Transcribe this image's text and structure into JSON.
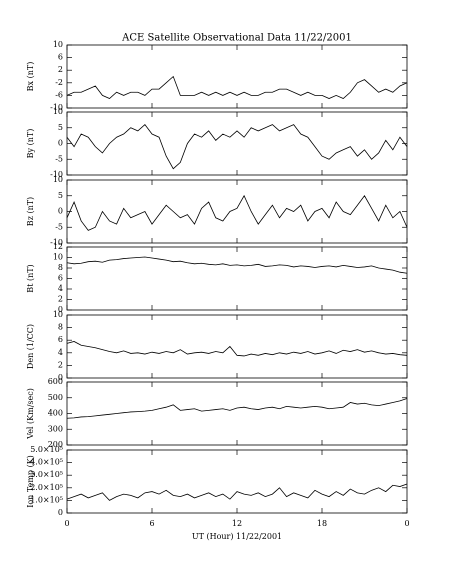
{
  "chart_data": [
    {
      "type": "line",
      "title": "ACE Satellite Observational Data   11/22/2001",
      "ylabel": "Bx (nT)",
      "color": "#000000",
      "ylim": [
        -10,
        10
      ],
      "yticks": [
        -10,
        -6,
        -2,
        2,
        6,
        10
      ],
      "x": [
        0,
        0.5,
        1,
        1.5,
        2,
        2.5,
        3,
        3.5,
        4,
        4.5,
        5,
        5.5,
        6,
        6.5,
        7,
        7.5,
        8,
        8.5,
        9,
        9.5,
        10,
        10.5,
        11,
        11.5,
        12,
        12.5,
        13,
        13.5,
        14,
        14.5,
        15,
        15.5,
        16,
        16.5,
        17,
        17.5,
        18,
        18.5,
        19,
        19.5,
        20,
        20.5,
        21,
        21.5,
        22,
        22.5,
        23,
        23.5,
        24
      ],
      "values": [
        -6,
        -5,
        -5,
        -4,
        -3,
        -6,
        -7,
        -5,
        -6,
        -5,
        -5,
        -6,
        -4,
        -4,
        -2,
        0,
        -6,
        -6,
        -6,
        -5,
        -6,
        -5,
        -6,
        -5,
        -6,
        -5,
        -6,
        -6,
        -5,
        -5,
        -4,
        -4,
        -5,
        -6,
        -5,
        -6,
        -6,
        -7,
        -6,
        -7,
        -5,
        -2,
        -1,
        -3,
        -5,
        -4,
        -5,
        -3,
        -2
      ]
    },
    {
      "type": "line",
      "ylabel": "By (nT)",
      "color": "#000000",
      "ylim": [
        -10,
        10
      ],
      "yticks": [
        -10,
        -5,
        0,
        5,
        10
      ],
      "x": [
        0,
        0.5,
        1,
        1.5,
        2,
        2.5,
        3,
        3.5,
        4,
        4.5,
        5,
        5.5,
        6,
        6.5,
        7,
        7.5,
        8,
        8.5,
        9,
        9.5,
        10,
        10.5,
        11,
        11.5,
        12,
        12.5,
        13,
        13.5,
        14,
        14.5,
        15,
        15.5,
        16,
        16.5,
        17,
        17.5,
        18,
        18.5,
        19,
        19.5,
        20,
        20.5,
        21,
        21.5,
        22,
        22.5,
        23,
        23.5,
        24
      ],
      "values": [
        2,
        -1,
        3,
        2,
        -1,
        -3,
        0,
        2,
        3,
        5,
        4,
        6,
        3,
        2,
        -4,
        -8,
        -6,
        0,
        3,
        2,
        4,
        1,
        3,
        2,
        4,
        2,
        5,
        4,
        5,
        6,
        4,
        5,
        6,
        3,
        2,
        -1,
        -4,
        -5,
        -3,
        -2,
        -1,
        -4,
        -2,
        -5,
        -3,
        1,
        -2,
        2,
        -1
      ]
    },
    {
      "type": "line",
      "ylabel": "Bz (nT)",
      "color": "#000000",
      "ylim": [
        -10,
        10
      ],
      "yticks": [
        -10,
        -5,
        0,
        5,
        10
      ],
      "x": [
        0,
        0.5,
        1,
        1.5,
        2,
        2.5,
        3,
        3.5,
        4,
        4.5,
        5,
        5.5,
        6,
        6.5,
        7,
        7.5,
        8,
        8.5,
        9,
        9.5,
        10,
        10.5,
        11,
        11.5,
        12,
        12.5,
        13,
        13.5,
        14,
        14.5,
        15,
        15.5,
        16,
        16.5,
        17,
        17.5,
        18,
        18.5,
        19,
        19.5,
        20,
        20.5,
        21,
        21.5,
        22,
        22.5,
        23,
        23.5,
        24
      ],
      "values": [
        -2,
        3,
        -3,
        -6,
        -5,
        0,
        -3,
        -4,
        1,
        -2,
        -1,
        0,
        -4,
        -1,
        2,
        0,
        -2,
        -1,
        -4,
        1,
        3,
        -2,
        -3,
        0,
        1,
        5,
        0,
        -4,
        -1,
        2,
        -2,
        1,
        0,
        2,
        -3,
        0,
        1,
        -2,
        3,
        0,
        -1,
        2,
        5,
        1,
        -3,
        2,
        -2,
        0,
        -5
      ]
    },
    {
      "type": "line",
      "ylabel": "Bt (nT)",
      "color": "#000000",
      "ylim": [
        0,
        12
      ],
      "yticks": [
        0,
        2,
        4,
        6,
        8,
        10,
        12
      ],
      "x": [
        0,
        0.5,
        1,
        1.5,
        2,
        2.5,
        3,
        3.5,
        4,
        4.5,
        5,
        5.5,
        6,
        6.5,
        7,
        7.5,
        8,
        8.5,
        9,
        9.5,
        10,
        10.5,
        11,
        11.5,
        12,
        12.5,
        13,
        13.5,
        14,
        14.5,
        15,
        15.5,
        16,
        16.5,
        17,
        17.5,
        18,
        18.5,
        19,
        19.5,
        20,
        20.5,
        21,
        21.5,
        22,
        22.5,
        23,
        23.5,
        24
      ],
      "values": [
        9,
        8.8,
        8.9,
        9.2,
        9.3,
        9.1,
        9.5,
        9.6,
        9.8,
        9.9,
        10,
        10.1,
        9.9,
        9.7,
        9.5,
        9.2,
        9.3,
        9,
        8.8,
        8.9,
        8.7,
        8.6,
        8.8,
        8.5,
        8.6,
        8.4,
        8.5,
        8.7,
        8.3,
        8.4,
        8.6,
        8.5,
        8.2,
        8.4,
        8.3,
        8.1,
        8.3,
        8.4,
        8.2,
        8.5,
        8.3,
        8.1,
        8.2,
        8.4,
        8,
        7.8,
        7.6,
        7.2,
        7
      ]
    },
    {
      "type": "line",
      "ylabel": "Den (1/CC)",
      "color": "#000000",
      "ylim": [
        0,
        10
      ],
      "yticks": [
        0,
        2,
        4,
        6,
        8,
        10
      ],
      "x": [
        0,
        0.5,
        1,
        1.5,
        2,
        2.5,
        3,
        3.5,
        4,
        4.5,
        5,
        5.5,
        6,
        6.5,
        7,
        7.5,
        8,
        8.5,
        9,
        9.5,
        10,
        10.5,
        11,
        11.5,
        12,
        12.5,
        13,
        13.5,
        14,
        14.5,
        15,
        15.5,
        16,
        16.5,
        17,
        17.5,
        18,
        18.5,
        19,
        19.5,
        20,
        20.5,
        21,
        21.5,
        22,
        22.5,
        23,
        23.5,
        24
      ],
      "values": [
        5.5,
        5.8,
        5.2,
        5,
        4.8,
        4.5,
        4.2,
        4,
        4.3,
        3.9,
        4,
        3.8,
        4.1,
        3.9,
        4.2,
        4,
        4.5,
        3.8,
        4,
        4.1,
        3.9,
        4.2,
        4,
        5,
        3.6,
        3.5,
        3.8,
        3.6,
        3.9,
        3.7,
        4,
        3.8,
        4.1,
        3.9,
        4.2,
        3.8,
        4,
        4.3,
        3.9,
        4.4,
        4.2,
        4.5,
        4.1,
        4.3,
        4,
        3.8,
        3.9,
        3.7,
        3.6
      ]
    },
    {
      "type": "line",
      "ylabel": "Vel (Km/sec)",
      "color": "#000000",
      "ylim": [
        200,
        600
      ],
      "yticks": [
        200,
        300,
        400,
        500,
        600
      ],
      "x": [
        0,
        0.5,
        1,
        1.5,
        2,
        2.5,
        3,
        3.5,
        4,
        4.5,
        5,
        5.5,
        6,
        6.5,
        7,
        7.5,
        8,
        8.5,
        9,
        9.5,
        10,
        10.5,
        11,
        11.5,
        12,
        12.5,
        13,
        13.5,
        14,
        14.5,
        15,
        15.5,
        16,
        16.5,
        17,
        17.5,
        18,
        18.5,
        19,
        19.5,
        20,
        20.5,
        21,
        21.5,
        22,
        22.5,
        23,
        23.5,
        24
      ],
      "values": [
        370,
        372,
        378,
        380,
        385,
        390,
        395,
        400,
        405,
        410,
        412,
        415,
        420,
        430,
        440,
        455,
        420,
        425,
        430,
        415,
        420,
        425,
        430,
        420,
        435,
        440,
        430,
        425,
        435,
        440,
        430,
        445,
        440,
        435,
        440,
        445,
        440,
        430,
        435,
        440,
        470,
        460,
        465,
        455,
        450,
        460,
        470,
        480,
        495
      ]
    },
    {
      "type": "line",
      "ylabel": "Ion Temp (K)",
      "xlabel": "UT (Hour)   11/22/2001",
      "color": "#000000",
      "ylim": [
        0,
        500000
      ],
      "yticks": [
        0,
        {
          "value": 100000,
          "label": "1.0×10⁵"
        },
        {
          "value": 200000,
          "label": "2.0×10⁵"
        },
        {
          "value": 300000,
          "label": "3.0×10⁵"
        },
        {
          "value": 400000,
          "label": "4.0×10⁵"
        },
        {
          "value": 500000,
          "label": "5.0×10⁵"
        }
      ],
      "xlim": [
        0,
        24
      ],
      "xticks": [
        0,
        6,
        12,
        18,
        {
          "value": 24,
          "label": "0"
        }
      ],
      "x": [
        0,
        0.5,
        1,
        1.5,
        2,
        2.5,
        3,
        3.5,
        4,
        4.5,
        5,
        5.5,
        6,
        6.5,
        7,
        7.5,
        8,
        8.5,
        9,
        9.5,
        10,
        10.5,
        11,
        11.5,
        12,
        12.5,
        13,
        13.5,
        14,
        14.5,
        15,
        15.5,
        16,
        16.5,
        17,
        17.5,
        18,
        18.5,
        19,
        19.5,
        20,
        20.5,
        21,
        21.5,
        22,
        22.5,
        23,
        23.5,
        24
      ],
      "values": [
        110000,
        130000,
        150000,
        120000,
        140000,
        160000,
        100000,
        130000,
        150000,
        140000,
        120000,
        160000,
        170000,
        150000,
        180000,
        140000,
        130000,
        150000,
        120000,
        140000,
        160000,
        130000,
        150000,
        110000,
        170000,
        150000,
        140000,
        160000,
        130000,
        150000,
        200000,
        130000,
        160000,
        140000,
        120000,
        180000,
        150000,
        130000,
        170000,
        140000,
        190000,
        160000,
        150000,
        180000,
        200000,
        170000,
        220000,
        210000,
        230000
      ]
    }
  ]
}
